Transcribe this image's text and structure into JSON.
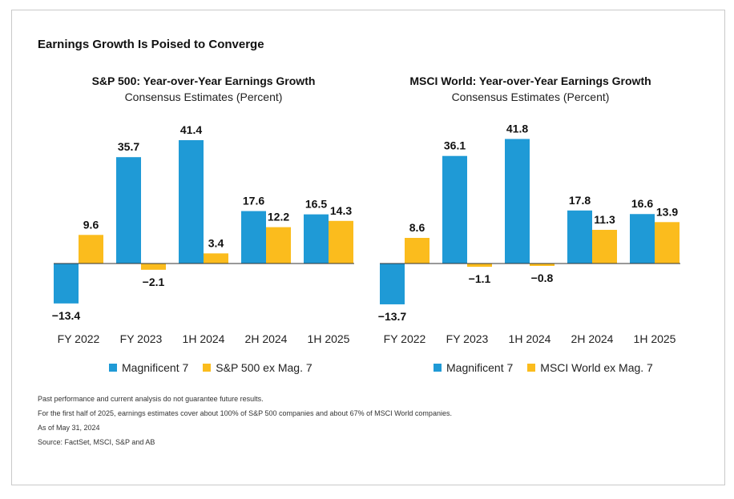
{
  "title": "Earnings Growth Is Poised to Converge",
  "colors": {
    "mag7": "#1f9ad6",
    "ex": "#fbbc1d"
  },
  "chart_data": [
    {
      "type": "bar",
      "title": "S&P 500: Year-over-Year Earnings Growth",
      "subtitle": "Consensus Estimates (Percent)",
      "categories": [
        "FY 2022",
        "FY 2023",
        "1H 2024",
        "2H 2024",
        "1H 2025"
      ],
      "series": [
        {
          "name": "Magnificent 7",
          "values": [
            -13.4,
            35.7,
            41.4,
            17.6,
            16.5
          ]
        },
        {
          "name": "S&P 500 ex Mag. 7",
          "values": [
            9.6,
            -2.1,
            3.4,
            12.2,
            14.3
          ]
        }
      ],
      "ylim": [
        -16,
        44
      ],
      "grid": false,
      "legend": "bottom"
    },
    {
      "type": "bar",
      "title": "MSCI World: Year-over-Year Earnings Growth",
      "subtitle": "Consensus Estimates (Percent)",
      "categories": [
        "FY 2022",
        "FY 2023",
        "1H 2024",
        "2H 2024",
        "1H 2025"
      ],
      "series": [
        {
          "name": "Magnificent 7",
          "values": [
            -13.7,
            36.1,
            41.8,
            17.8,
            16.6
          ]
        },
        {
          "name": "MSCI World ex Mag. 7",
          "values": [
            8.6,
            -1.1,
            -0.8,
            11.3,
            13.9
          ]
        }
      ],
      "ylim": [
        -16,
        44
      ],
      "grid": false,
      "legend": "bottom"
    }
  ],
  "notes": [
    "Past performance and current analysis do not guarantee future results.",
    "For the first half of 2025, earnings estimates cover about 100% of S&P 500 companies and about 67% of MSCI World companies.",
    "As of May 31, 2024",
    "Source: FactSet, MSCI, S&P and AB"
  ]
}
